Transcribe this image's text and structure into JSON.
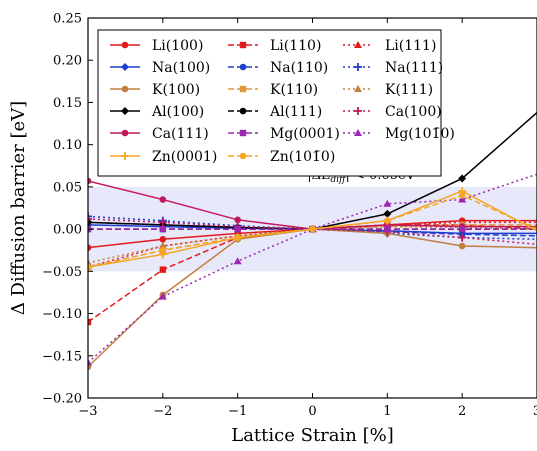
{
  "chart_data": {
    "type": "line",
    "xlabel": "Lattice Strain [%]",
    "ylabel": "Δ Diffusion barrier [eV]",
    "xlim": [
      -3,
      3
    ],
    "ylim": [
      -0.2,
      0.25
    ],
    "x_ticks": [
      -3,
      -2,
      -1,
      0,
      1,
      2,
      3
    ],
    "y_ticks": [
      -0.2,
      -0.15,
      -0.1,
      -0.05,
      0.0,
      0.05,
      0.1,
      0.15,
      0.2,
      0.25
    ],
    "x_tick_labels": [
      "−3",
      "−2",
      "−1",
      "0",
      "1",
      "2",
      "3"
    ],
    "y_tick_labels": [
      "−0.20",
      "−0.15",
      "−0.10",
      "−0.05",
      "0.00",
      "0.05",
      "0.10",
      "0.15",
      "0.20",
      "0.25"
    ],
    "grid": false,
    "legend_position": "top-left",
    "band": {
      "from": -0.05,
      "to": 0.05,
      "color": "#e8e8fb",
      "label": "|ΔE_diff| < 0.05eV"
    },
    "x": [
      -3,
      -2,
      -1,
      0,
      1,
      2,
      3
    ],
    "series": [
      {
        "name": "Li(100)",
        "color": "#e31a1c",
        "marker": "circle",
        "dash": "solid",
        "values": [
          -0.022,
          -0.012,
          -0.005,
          0.0,
          0.005,
          0.01,
          0.01
        ]
      },
      {
        "name": "Li(110)",
        "color": "#e31a1c",
        "marker": "square",
        "dash": "dashed",
        "values": [
          -0.11,
          -0.048,
          -0.01,
          0.0,
          0.005,
          0.005,
          0.0
        ]
      },
      {
        "name": "Li(111)",
        "color": "#e31a1c",
        "marker": "triangle",
        "dash": "dotted",
        "values": [
          -0.045,
          -0.02,
          -0.008,
          0.0,
          0.005,
          0.008,
          0.008
        ]
      },
      {
        "name": "Na(100)",
        "color": "#1f3fcc",
        "marker": "diamond",
        "dash": "solid",
        "values": [
          0.005,
          0.003,
          0.001,
          0.0,
          -0.002,
          -0.005,
          -0.005
        ]
      },
      {
        "name": "Na(110)",
        "color": "#1f3fcc",
        "marker": "circle",
        "dash": "dashed",
        "values": [
          0.008,
          0.005,
          0.002,
          0.0,
          -0.003,
          -0.006,
          -0.008
        ]
      },
      {
        "name": "Na(111)",
        "color": "#1f3fcc",
        "marker": "star",
        "dash": "dotted",
        "values": [
          0.015,
          0.01,
          0.004,
          0.0,
          -0.005,
          -0.01,
          -0.012
        ]
      },
      {
        "name": "K(100)",
        "color": "#c08040",
        "marker": "circle",
        "dash": "solid",
        "values": [
          -0.163,
          -0.078,
          -0.012,
          0.0,
          -0.005,
          -0.02,
          -0.022
        ]
      },
      {
        "name": "K(110)",
        "color": "#e0963c",
        "marker": "square",
        "dash": "dashed",
        "values": [
          -0.045,
          -0.025,
          -0.01,
          0.0,
          0.003,
          0.005,
          0.005
        ]
      },
      {
        "name": "K(111)",
        "color": "#c08040",
        "marker": "triangle",
        "dash": "dotted",
        "values": [
          -0.04,
          -0.02,
          -0.008,
          0.0,
          0.003,
          0.002,
          0.0
        ]
      },
      {
        "name": "Al(100)",
        "color": "#000000",
        "marker": "diamond",
        "dash": "solid",
        "values": [
          0.008,
          0.005,
          0.002,
          0.0,
          0.018,
          0.06,
          0.138
        ]
      },
      {
        "name": "Al(111)",
        "color": "#000000",
        "marker": "circle",
        "dash": "dashed",
        "values": [
          0.0,
          0.0,
          0.0,
          0.0,
          0.0,
          0.0,
          0.0
        ]
      },
      {
        "name": "Ca(100)",
        "color": "#c2185b",
        "marker": "star",
        "dash": "dotted",
        "values": [
          0.012,
          0.008,
          0.003,
          0.0,
          -0.003,
          -0.01,
          -0.018
        ]
      },
      {
        "name": "Ca(111)",
        "color": "#c2185b",
        "marker": "circle",
        "dash": "solid",
        "values": [
          0.057,
          0.035,
          0.011,
          0.0,
          0.005,
          0.003,
          0.003
        ]
      },
      {
        "name": "Mg(0001)",
        "color": "#9c27b0",
        "marker": "square",
        "dash": "dashed",
        "values": [
          0.0,
          0.0,
          0.0,
          0.0,
          0.0,
          0.0,
          0.0
        ]
      },
      {
        "name": "Mg(10$\\bar{1}$0)",
        "color": "#9c27b0",
        "marker": "triangle",
        "dash": "dotted",
        "values": [
          -0.158,
          -0.08,
          -0.038,
          0.0,
          0.03,
          0.035,
          0.065
        ]
      },
      {
        "name": "Zn(0001)",
        "color": "#f5a623",
        "marker": "star",
        "dash": "solid",
        "values": [
          -0.045,
          -0.03,
          -0.01,
          0.0,
          0.01,
          0.045,
          -0.002
        ]
      },
      {
        "name": "Zn(10$\\bar{1}$0)",
        "color": "#f5a623",
        "marker": "circle",
        "dash": "dashed",
        "values": [
          -0.045,
          -0.025,
          -0.01,
          0.0,
          0.01,
          0.04,
          0.0
        ]
      }
    ],
    "legend_labels": [
      "Li(100)",
      "Li(110)",
      "Li(111)",
      "Na(100)",
      "Na(110)",
      "Na(111)",
      "K(100)",
      "K(110)",
      "K(111)",
      "Al(100)",
      "Al(111)",
      "Ca(100)",
      "Ca(111)",
      "Mg(0001)",
      "Mg(101̄0)",
      "Zn(0001)",
      "Zn(101̄0)"
    ]
  }
}
